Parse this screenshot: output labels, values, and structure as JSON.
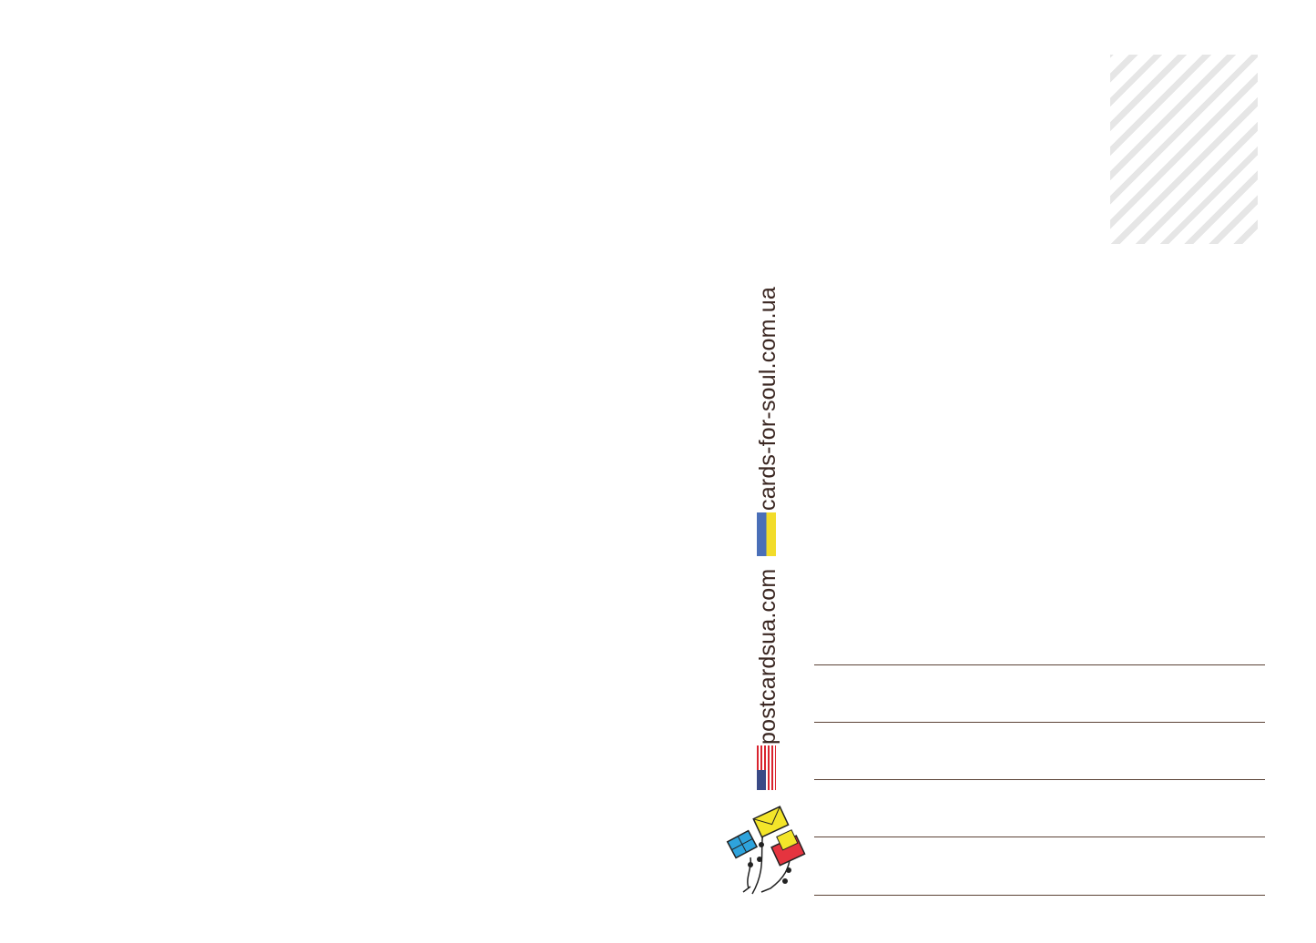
{
  "postcard": {
    "site_ua": "cards-for-soul.com.ua",
    "site_us": "postcardsua.com",
    "flags": [
      "ukraine-flag",
      "usa-flag"
    ],
    "colors": {
      "text": "#3b2722",
      "ua_blue": "#4a6fb8",
      "ua_yellow": "#f2dc2a",
      "address_line": "#5b4236"
    },
    "address_lines": 5,
    "logo": "kites-envelopes-logo"
  }
}
